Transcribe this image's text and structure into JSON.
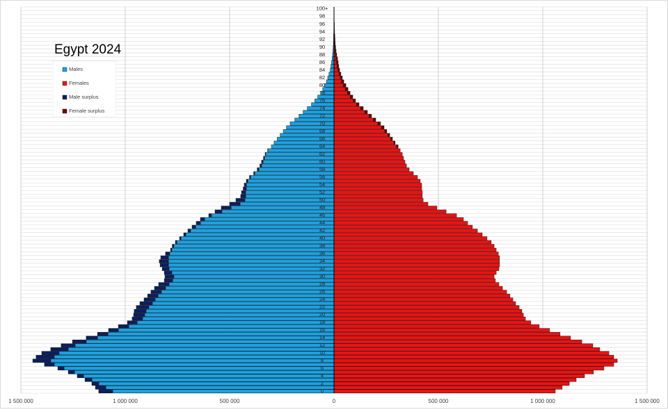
{
  "chart_data": {
    "type": "pyramid",
    "title": "Egypt 2024",
    "categories": [
      "0",
      null,
      "2",
      null,
      "4",
      null,
      "6",
      null,
      "8",
      null,
      "10",
      null,
      "12",
      null,
      "14",
      null,
      "16",
      null,
      "18",
      null,
      "20",
      null,
      "22",
      null,
      "24",
      null,
      "26",
      null,
      "28",
      null,
      "30",
      null,
      "32",
      null,
      "34",
      null,
      "36",
      null,
      "38",
      null,
      "40",
      null,
      "42",
      null,
      "44",
      null,
      "46",
      null,
      "48",
      null,
      "50",
      null,
      "52",
      null,
      "54",
      null,
      "56",
      null,
      "58",
      null,
      "60",
      null,
      "62",
      null,
      "64",
      null,
      "66",
      null,
      "68",
      null,
      "70",
      null,
      "72",
      null,
      "74",
      null,
      "76",
      null,
      "78",
      null,
      "80",
      null,
      "82",
      null,
      "84",
      null,
      "86",
      null,
      "88",
      null,
      "90",
      null,
      "92",
      null,
      "94",
      null,
      "96",
      null,
      "98",
      null,
      "100+"
    ],
    "series": [
      {
        "name": "Males",
        "color": "#1ba1e2",
        "side": "left",
        "values": [
          1060000,
          1093000,
          1127000,
          1160000,
          1200000,
          1243000,
          1293000,
          1340000,
          1357000,
          1340000,
          1317000,
          1273000,
          1240000,
          1187000,
          1133000,
          1083000,
          1033000,
          983000,
          943000,
          917000,
          907000,
          900000,
          887000,
          870000,
          857000,
          843000,
          827000,
          807000,
          790000,
          773000,
          767000,
          777000,
          790000,
          793000,
          793000,
          793000,
          787000,
          777000,
          767000,
          753000,
          733000,
          710000,
          687000,
          663000,
          640000,
          620000,
          587000,
          537000,
          493000,
          450000,
          427000,
          423000,
          423000,
          420000,
          420000,
          413000,
          400000,
          380000,
          360000,
          347000,
          340000,
          333000,
          327000,
          317000,
          300000,
          287000,
          272000,
          258000,
          243000,
          228000,
          210000,
          188000,
          168000,
          148000,
          128000,
          108000,
          92000,
          78000,
          64000,
          54000,
          45000,
          36000,
          30000,
          24000,
          18000,
          15000,
          12000,
          9000,
          7000,
          5000,
          4000,
          3000,
          2000,
          2000,
          1000,
          1000,
          1000,
          1000,
          0,
          0,
          0
        ]
      },
      {
        "name": "Females",
        "color": "#ee1111",
        "side": "right",
        "values": [
          1060000,
          1093000,
          1127000,
          1160000,
          1200000,
          1243000,
          1293000,
          1340000,
          1357000,
          1340000,
          1317000,
          1273000,
          1240000,
          1187000,
          1133000,
          1083000,
          1033000,
          983000,
          943000,
          917000,
          907000,
          900000,
          887000,
          870000,
          857000,
          843000,
          827000,
          807000,
          790000,
          773000,
          767000,
          777000,
          790000,
          793000,
          793000,
          793000,
          787000,
          777000,
          767000,
          753000,
          733000,
          710000,
          687000,
          663000,
          640000,
          620000,
          587000,
          537000,
          493000,
          450000,
          427000,
          423000,
          423000,
          420000,
          420000,
          413000,
          400000,
          380000,
          360000,
          347000,
          340000,
          333000,
          327000,
          317000,
          300000,
          287000,
          272000,
          258000,
          243000,
          228000,
          210000,
          188000,
          168000,
          148000,
          128000,
          108000,
          92000,
          78000,
          64000,
          54000,
          45000,
          36000,
          30000,
          24000,
          18000,
          15000,
          12000,
          9000,
          7000,
          5000,
          4000,
          3000,
          2000,
          2000,
          1000,
          1000,
          1000,
          1000,
          0,
          0,
          0
        ]
      },
      {
        "name": "Male surplus",
        "color": "#0b1f5e",
        "side": "left",
        "values": [
          67000,
          50000,
          33000,
          33000,
          30000,
          30000,
          30000,
          47000,
          86000,
          87000,
          83000,
          84000,
          67000,
          66000,
          54000,
          50000,
          47000,
          50000,
          47000,
          50000,
          53000,
          57000,
          60000,
          60000,
          53000,
          50000,
          50000,
          53000,
          50000,
          40000,
          43000,
          36000,
          33000,
          40000,
          44000,
          37000,
          20000,
          6000,
          8000,
          7000,
          7000,
          10000,
          13000,
          17000,
          20000,
          20000,
          13000,
          33000,
          47000,
          50000,
          43000,
          24000,
          20000,
          15000,
          10000,
          7000,
          5000,
          5000,
          8000,
          8000,
          7000,
          5000,
          3000,
          1000,
          0,
          0,
          0,
          0,
          0,
          0,
          0,
          0,
          0,
          0,
          0,
          0,
          0,
          0,
          0,
          0,
          0,
          0,
          0,
          0,
          0,
          0,
          0,
          0,
          0,
          0,
          0,
          0,
          0,
          0,
          0,
          0,
          0,
          0,
          0,
          0,
          0
        ]
      },
      {
        "name": "Female surplus",
        "color": "#6b0000",
        "side": "right",
        "values": [
          0,
          0,
          0,
          0,
          0,
          0,
          0,
          0,
          0,
          0,
          0,
          0,
          0,
          0,
          0,
          0,
          0,
          0,
          0,
          0,
          0,
          0,
          0,
          0,
          0,
          0,
          0,
          0,
          0,
          0,
          0,
          0,
          0,
          0,
          0,
          0,
          0,
          0,
          0,
          0,
          0,
          0,
          0,
          0,
          0,
          0,
          0,
          0,
          0,
          0,
          0,
          0,
          0,
          0,
          0,
          0,
          0,
          0,
          0,
          0,
          0,
          0,
          0,
          0,
          7000,
          6000,
          8000,
          9000,
          10000,
          12000,
          13000,
          12000,
          12000,
          12000,
          12000,
          12000,
          11000,
          12000,
          13000,
          13000,
          12000,
          11000,
          10000,
          9000,
          9000,
          8000,
          8000,
          8000,
          6000,
          5000,
          4000,
          3000,
          3000,
          2000,
          2000,
          1000,
          1000,
          0,
          1000,
          1000,
          1000
        ]
      }
    ],
    "xlim": [
      -1500000,
      1500000
    ],
    "xticks": [
      {
        "value": -1500000,
        "label": "1 500 000"
      },
      {
        "value": -1000000,
        "label": "1 000 000"
      },
      {
        "value": -500000,
        "label": "500 000"
      },
      0,
      {
        "value": 500000,
        "label": "500 000"
      },
      {
        "value": 1000000,
        "label": "1 000 000"
      },
      {
        "value": 1500000,
        "label": "1 500 000"
      }
    ],
    "grid": true,
    "legend": "upper left"
  }
}
